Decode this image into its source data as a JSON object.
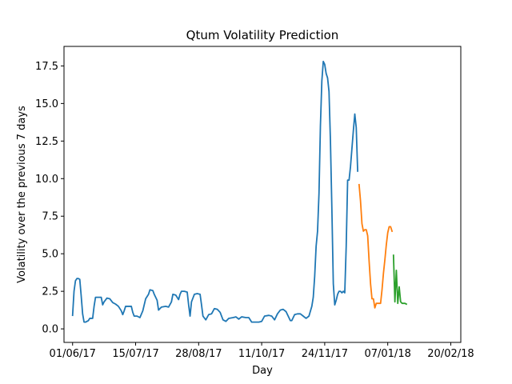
{
  "chart_data": {
    "type": "line",
    "title": "Qtum Volatility Prediction",
    "xlabel": "Day",
    "ylabel": "Volatility over the previous 7 days",
    "x_type": "date",
    "x_ticks": [
      {
        "date": "2017-06-01",
        "label": "01/06/17"
      },
      {
        "date": "2017-07-15",
        "label": "15/07/17"
      },
      {
        "date": "2017-08-28",
        "label": "28/08/17"
      },
      {
        "date": "2017-10-11",
        "label": "11/10/17"
      },
      {
        "date": "2017-11-24",
        "label": "24/11/17"
      },
      {
        "date": "2018-01-07",
        "label": "07/01/18"
      },
      {
        "date": "2018-02-20",
        "label": "20/02/18"
      }
    ],
    "y_ticks": [
      0.0,
      2.5,
      5.0,
      7.5,
      10.0,
      12.5,
      15.0,
      17.5
    ],
    "y_tick_labels": [
      "0.0",
      "2.5",
      "5.0",
      "7.5",
      "10.0",
      "12.5",
      "15.0",
      "17.5"
    ],
    "xlim": [
      "2017-05-26",
      "2018-02-27"
    ],
    "ylim": [
      -0.9,
      18.8
    ],
    "grid": false,
    "series": [
      {
        "color": "#1f77b4",
        "points": [
          [
            "2017-06-01",
            0.9
          ],
          [
            "2017-06-02",
            2.5
          ],
          [
            "2017-06-03",
            3.2
          ],
          [
            "2017-06-04",
            3.35
          ],
          [
            "2017-06-05",
            3.35
          ],
          [
            "2017-06-06",
            3.3
          ],
          [
            "2017-06-07",
            2.2
          ],
          [
            "2017-06-08",
            1.0
          ],
          [
            "2017-06-09",
            0.45
          ],
          [
            "2017-06-10",
            0.45
          ],
          [
            "2017-06-12",
            0.55
          ],
          [
            "2017-06-13",
            0.7
          ],
          [
            "2017-06-15",
            0.7
          ],
          [
            "2017-06-16",
            1.5
          ],
          [
            "2017-06-17",
            2.1
          ],
          [
            "2017-06-19",
            2.1
          ],
          [
            "2017-06-21",
            2.1
          ],
          [
            "2017-06-22",
            1.6
          ],
          [
            "2017-06-23",
            1.8
          ],
          [
            "2017-06-25",
            2.05
          ],
          [
            "2017-06-27",
            2.0
          ],
          [
            "2017-06-29",
            1.75
          ],
          [
            "2017-07-01",
            1.65
          ],
          [
            "2017-07-03",
            1.5
          ],
          [
            "2017-07-05",
            1.2
          ],
          [
            "2017-07-06",
            0.95
          ],
          [
            "2017-07-07",
            1.2
          ],
          [
            "2017-07-08",
            1.5
          ],
          [
            "2017-07-10",
            1.5
          ],
          [
            "2017-07-12",
            1.5
          ],
          [
            "2017-07-13",
            1.1
          ],
          [
            "2017-07-14",
            0.85
          ],
          [
            "2017-07-16",
            0.85
          ],
          [
            "2017-07-18",
            0.75
          ],
          [
            "2017-07-20",
            1.2
          ],
          [
            "2017-07-22",
            2.0
          ],
          [
            "2017-07-24",
            2.3
          ],
          [
            "2017-07-25",
            2.6
          ],
          [
            "2017-07-27",
            2.55
          ],
          [
            "2017-07-28",
            2.3
          ],
          [
            "2017-07-30",
            1.9
          ],
          [
            "2017-07-31",
            1.25
          ],
          [
            "2017-08-02",
            1.45
          ],
          [
            "2017-08-05",
            1.5
          ],
          [
            "2017-08-07",
            1.45
          ],
          [
            "2017-08-09",
            1.8
          ],
          [
            "2017-08-10",
            2.3
          ],
          [
            "2017-08-12",
            2.25
          ],
          [
            "2017-08-14",
            1.95
          ],
          [
            "2017-08-15",
            2.3
          ],
          [
            "2017-08-16",
            2.5
          ],
          [
            "2017-08-18",
            2.5
          ],
          [
            "2017-08-20",
            2.45
          ],
          [
            "2017-08-21",
            1.6
          ],
          [
            "2017-08-22",
            0.85
          ],
          [
            "2017-08-23",
            1.8
          ],
          [
            "2017-08-25",
            2.3
          ],
          [
            "2017-08-27",
            2.35
          ],
          [
            "2017-08-29",
            2.3
          ],
          [
            "2017-08-30",
            1.6
          ],
          [
            "2017-08-31",
            0.85
          ],
          [
            "2017-09-02",
            0.6
          ],
          [
            "2017-09-04",
            0.95
          ],
          [
            "2017-09-06",
            1.0
          ],
          [
            "2017-09-08",
            1.35
          ],
          [
            "2017-09-10",
            1.3
          ],
          [
            "2017-09-12",
            1.1
          ],
          [
            "2017-09-14",
            0.6
          ],
          [
            "2017-09-16",
            0.5
          ],
          [
            "2017-09-18",
            0.7
          ],
          [
            "2017-09-21",
            0.75
          ],
          [
            "2017-09-23",
            0.8
          ],
          [
            "2017-09-25",
            0.65
          ],
          [
            "2017-09-27",
            0.8
          ],
          [
            "2017-09-30",
            0.75
          ],
          [
            "2017-10-02",
            0.75
          ],
          [
            "2017-10-04",
            0.45
          ],
          [
            "2017-10-06",
            0.45
          ],
          [
            "2017-10-09",
            0.45
          ],
          [
            "2017-10-11",
            0.5
          ],
          [
            "2017-10-13",
            0.85
          ],
          [
            "2017-10-16",
            0.9
          ],
          [
            "2017-10-18",
            0.85
          ],
          [
            "2017-10-20",
            0.6
          ],
          [
            "2017-10-22",
            1.0
          ],
          [
            "2017-10-24",
            1.25
          ],
          [
            "2017-10-26",
            1.3
          ],
          [
            "2017-10-28",
            1.15
          ],
          [
            "2017-10-30",
            0.75
          ],
          [
            "2017-10-31",
            0.55
          ],
          [
            "2017-11-01",
            0.55
          ],
          [
            "2017-11-03",
            0.95
          ],
          [
            "2017-11-05",
            1.0
          ],
          [
            "2017-11-07",
            1.0
          ],
          [
            "2017-11-09",
            0.85
          ],
          [
            "2017-11-11",
            0.7
          ],
          [
            "2017-11-13",
            0.85
          ],
          [
            "2017-11-15",
            1.5
          ],
          [
            "2017-11-16",
            2.1
          ],
          [
            "2017-11-17",
            3.5
          ],
          [
            "2017-11-18",
            5.5
          ],
          [
            "2017-11-19",
            6.5
          ],
          [
            "2017-11-20",
            9.0
          ],
          [
            "2017-11-21",
            13.5
          ],
          [
            "2017-11-22",
            16.5
          ],
          [
            "2017-11-23",
            17.8
          ],
          [
            "2017-11-24",
            17.6
          ],
          [
            "2017-11-25",
            17.0
          ],
          [
            "2017-11-26",
            16.7
          ],
          [
            "2017-11-27",
            15.8
          ],
          [
            "2017-11-28",
            12.5
          ],
          [
            "2017-11-29",
            8.0
          ],
          [
            "2017-11-30",
            3.0
          ],
          [
            "2017-12-01",
            1.6
          ],
          [
            "2017-12-02",
            1.9
          ],
          [
            "2017-12-03",
            2.3
          ],
          [
            "2017-12-04",
            2.5
          ],
          [
            "2017-12-05",
            2.5
          ],
          [
            "2017-12-06",
            2.4
          ],
          [
            "2017-12-07",
            2.5
          ],
          [
            "2017-12-08",
            2.4
          ],
          [
            "2017-12-09",
            5.5
          ],
          [
            "2017-12-10",
            9.9
          ],
          [
            "2017-12-11",
            9.9
          ],
          [
            "2017-12-12",
            10.8
          ],
          [
            "2017-12-13",
            12.0
          ],
          [
            "2017-12-14",
            13.2
          ],
          [
            "2017-12-15",
            14.3
          ],
          [
            "2017-12-16",
            13.4
          ],
          [
            "2017-12-17",
            10.5
          ]
        ]
      },
      {
        "color": "#ff7f0e",
        "points": [
          [
            "2017-12-18",
            9.6
          ],
          [
            "2017-12-19",
            8.5
          ],
          [
            "2017-12-20",
            7.0
          ],
          [
            "2017-12-21",
            6.5
          ],
          [
            "2017-12-22",
            6.6
          ],
          [
            "2017-12-23",
            6.6
          ],
          [
            "2017-12-24",
            6.2
          ],
          [
            "2017-12-25",
            4.5
          ],
          [
            "2017-12-26",
            3.0
          ],
          [
            "2017-12-27",
            2.0
          ],
          [
            "2017-12-28",
            2.0
          ],
          [
            "2017-12-29",
            1.4
          ],
          [
            "2017-12-30",
            1.7
          ],
          [
            "2017-12-31",
            1.7
          ],
          [
            "2018-01-01",
            1.7
          ],
          [
            "2018-01-02",
            1.7
          ],
          [
            "2018-01-03",
            2.6
          ],
          [
            "2018-01-04",
            3.7
          ],
          [
            "2018-01-05",
            4.6
          ],
          [
            "2018-01-06",
            5.6
          ],
          [
            "2018-01-07",
            6.4
          ],
          [
            "2018-01-08",
            6.8
          ],
          [
            "2018-01-09",
            6.8
          ],
          [
            "2018-01-10",
            6.5
          ]
        ]
      },
      {
        "color": "#2ca02c",
        "points": [
          [
            "2018-01-11",
            4.9
          ],
          [
            "2018-01-12",
            1.8
          ],
          [
            "2018-01-13",
            3.9
          ],
          [
            "2018-01-14",
            1.7
          ],
          [
            "2018-01-15",
            2.8
          ],
          [
            "2018-01-16",
            1.8
          ],
          [
            "2018-01-17",
            1.7
          ],
          [
            "2018-01-18",
            1.7
          ],
          [
            "2018-01-19",
            1.7
          ],
          [
            "2018-01-20",
            1.65
          ]
        ]
      }
    ]
  }
}
